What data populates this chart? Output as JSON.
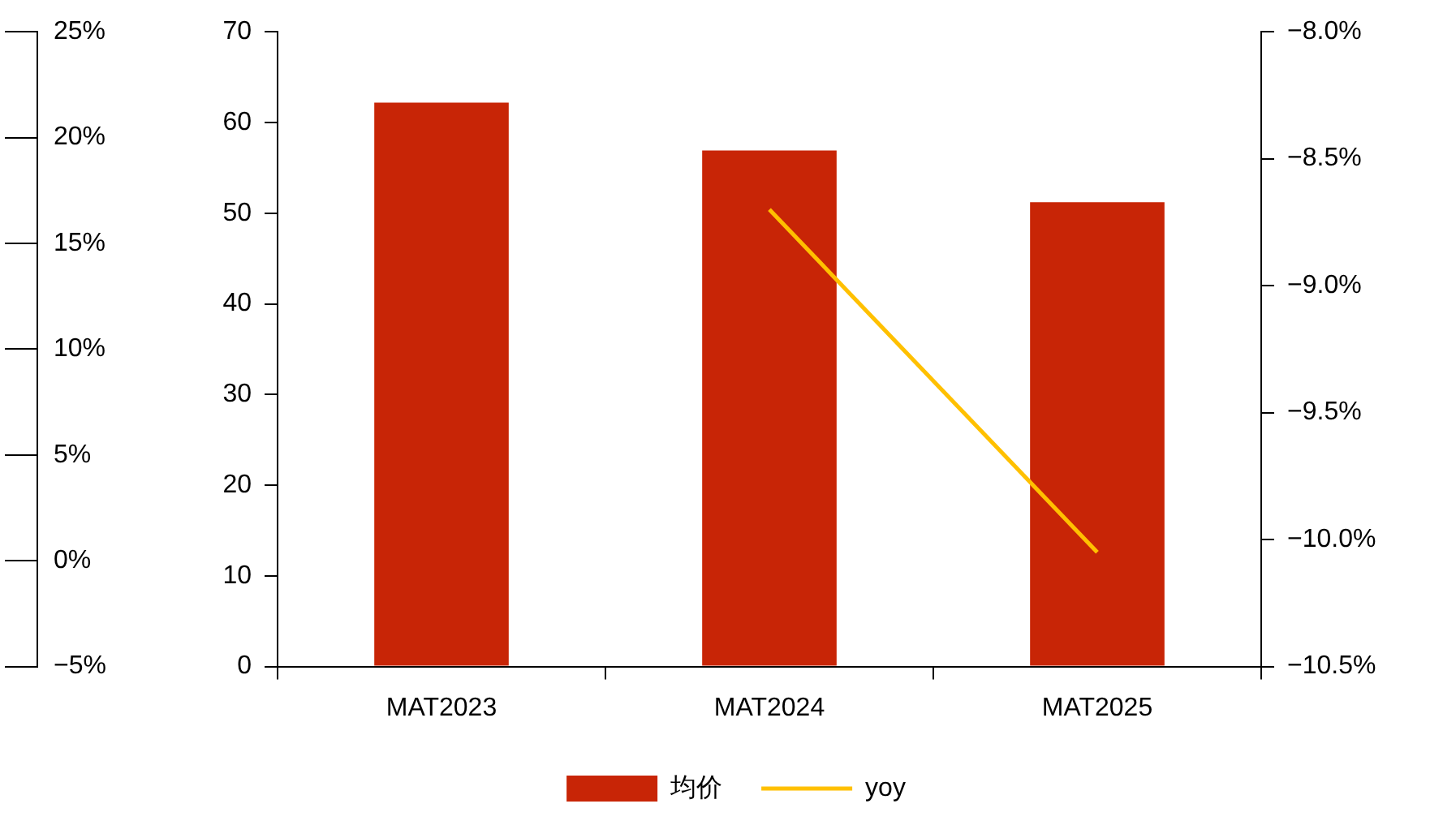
{
  "chart_data": {
    "type": "bar",
    "categories": [
      "MAT2023",
      "MAT2024",
      "MAT2025"
    ],
    "series": [
      {
        "name": "均价",
        "color": "#c82506",
        "values": [
          62.2,
          56.9,
          51.2
        ]
      },
      {
        "name": "yoy",
        "type": "line",
        "axis": "y2",
        "color": "#ffc000",
        "values": [
          null,
          -8.7,
          -10.05
        ]
      }
    ],
    "ylim": [
      0,
      70
    ],
    "yticks": [
      0,
      10,
      20,
      30,
      40,
      50,
      60,
      70
    ],
    "y2lim": [
      -10.5,
      -8.0
    ],
    "y2ticks": [
      {
        "value": -10.5,
        "label": "−10.5%"
      },
      {
        "value": -10,
        "label": "−10.0%"
      },
      {
        "value": -9.5,
        "label": "−9.5%"
      },
      {
        "value": -9,
        "label": "−9.0%"
      },
      {
        "value": -8.5,
        "label": "−8.5%"
      },
      {
        "value": -8,
        "label": "−8.0%"
      }
    ],
    "y3lim": [
      -5,
      25
    ],
    "y3ticks": [
      {
        "value": -5,
        "label": "−5%"
      },
      {
        "value": 0,
        "label": "0%"
      },
      {
        "value": 5,
        "label": "5%"
      },
      {
        "value": 10,
        "label": "10%"
      },
      {
        "value": 15,
        "label": "15%"
      },
      {
        "value": 20,
        "label": "20%"
      },
      {
        "value": 25,
        "label": "25%"
      }
    ],
    "grid": false,
    "legend": "bottom",
    "marker": "none",
    "line_style": "solid"
  }
}
